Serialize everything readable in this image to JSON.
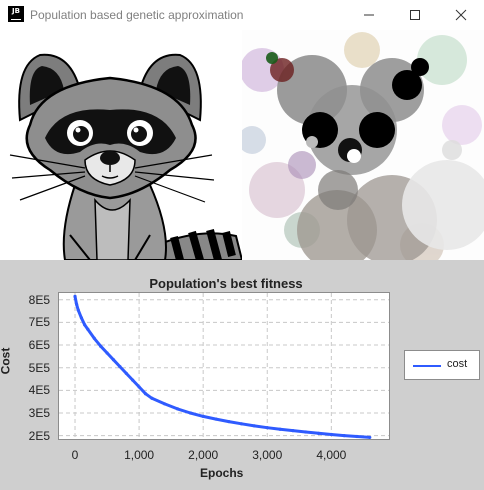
{
  "window": {
    "title": "Population based genetic approximation",
    "icon_text": "JB",
    "controls": [
      "minimize-icon",
      "maximize-icon",
      "close-icon"
    ]
  },
  "images": {
    "left": "raccoon-reference-image",
    "right": "raccoon-approximation-image"
  },
  "chart_data": {
    "type": "line",
    "title": "Population's best fitness",
    "xlabel": "Epochs",
    "ylabel": "Cost",
    "xlim": [
      -250,
      4900
    ],
    "ylim": [
      185000,
      830000
    ],
    "x_ticks": [
      0,
      1000,
      2000,
      3000,
      4000
    ],
    "x_tick_labels": [
      "0",
      "1,000",
      "2,000",
      "3,000",
      "4,000"
    ],
    "y_ticks": [
      200000,
      300000,
      400000,
      500000,
      600000,
      700000,
      800000
    ],
    "y_tick_labels": [
      "2E5",
      "3E5",
      "4E5",
      "5E5",
      "6E5",
      "7E5",
      "8E5"
    ],
    "grid": true,
    "legend_position": "right",
    "series": [
      {
        "name": "cost",
        "color": "#2f5bff",
        "x": [
          0,
          25,
          50,
          100,
          150,
          200,
          300,
          400,
          500,
          600,
          700,
          800,
          900,
          1000,
          1100,
          1200,
          1400,
          1600,
          1800,
          2000,
          2200,
          2400,
          2600,
          2800,
          3000,
          3200,
          3400,
          3600,
          3800,
          4000,
          4200,
          4400,
          4600
        ],
        "y": [
          815000,
          780000,
          755000,
          720000,
          690000,
          670000,
          630000,
          595000,
          565000,
          535000,
          505000,
          475000,
          445000,
          415000,
          385000,
          365000,
          340000,
          318000,
          300000,
          285000,
          273000,
          262000,
          252000,
          243000,
          235000,
          228000,
          222000,
          216000,
          210000,
          205000,
          200000,
          196000,
          192000
        ]
      }
    ]
  }
}
